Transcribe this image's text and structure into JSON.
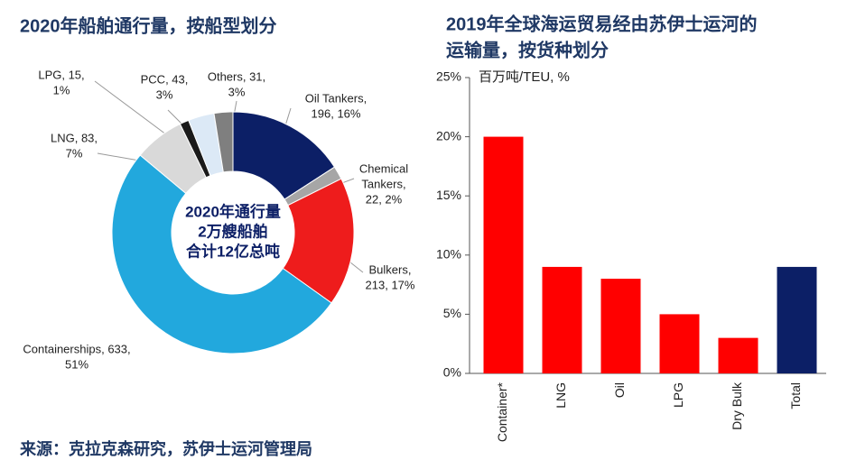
{
  "chart_data": [
    {
      "type": "donut",
      "title": "2020年船舶通行量，按船型划分",
      "values": [
        196,
        22,
        213,
        633,
        83,
        15,
        43,
        31
      ],
      "value_labels": [
        [
          "Oil Tankers,",
          "196, 16%"
        ],
        [
          "Chemical",
          "Tankers,",
          "22, 2%"
        ],
        [
          "Bulkers,",
          "213, 17%"
        ],
        [
          "Containerships, 633,",
          "51%"
        ],
        [
          "LNG, 83,",
          "7%"
        ],
        [
          "LPG, 15,",
          "1%"
        ],
        [
          "PCC, 43,",
          "3%"
        ],
        [
          "Others, 31,",
          "3%"
        ]
      ],
      "colors": [
        "#0c1f66",
        "#a6a6a6",
        "#ee1c1c",
        "#22a8dd",
        "#d9d9d9",
        "#1a1a1a",
        "#dce9f6",
        "#7f7f7f"
      ],
      "center_text": [
        "2020年通行量",
        "2万艘船舶",
        "合计12亿总吨"
      ]
    },
    {
      "type": "bar",
      "title": [
        "2019年全球海运贸易经由苏伊士运河的",
        "运输量，按货种划分"
      ],
      "y_label": "百万吨/TEU, %",
      "categories": [
        "Container*",
        "LNG",
        "Oil",
        "LPG",
        "Dry Bulk",
        "Total"
      ],
      "values": [
        20,
        9,
        8,
        5,
        3,
        9
      ],
      "colors": [
        "#ff0000",
        "#ff0000",
        "#ff0000",
        "#ff0000",
        "#ff0000",
        "#0c1f66"
      ],
      "ylim": [
        0,
        25
      ],
      "yticks": [
        {
          "value": 0,
          "label": "0%"
        },
        {
          "value": 5,
          "label": "5%"
        },
        {
          "value": 10,
          "label": "10%"
        },
        {
          "value": 15,
          "label": "15%"
        },
        {
          "value": 20,
          "label": "20%"
        },
        {
          "value": 25,
          "label": "25%"
        }
      ]
    }
  ],
  "source": "来源：克拉克森研究，苏伊士运河管理局"
}
